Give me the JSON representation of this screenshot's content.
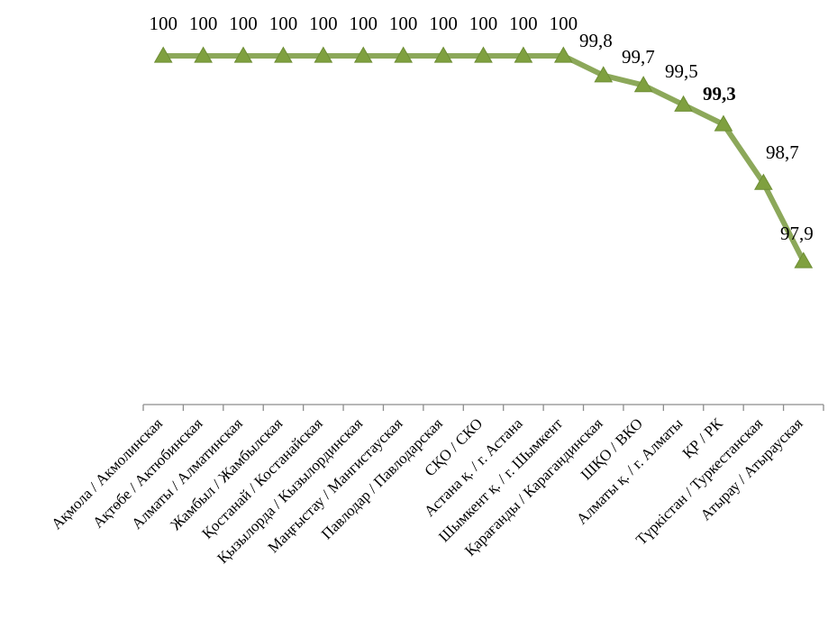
{
  "chart_data": {
    "type": "line",
    "categories": [
      "Ақмола / Акмолинская",
      "Ақтөбе / Актюбинская",
      "Алматы / Алматинская",
      "Жамбыл / Жамбылская",
      "Қостанай / Костанайская",
      "Қызылорда / Кызылординская",
      "Маңғыстау / Мангистауская",
      "Павлодар / Павлодарская",
      "СҚО / СКО",
      "Астана қ. / г. Астана",
      "Шымкент қ. / г. Шымкент",
      "Қарағанды / Карагандинская",
      "ШҚО / ВКО",
      "Алматы қ. / г. Алматы",
      "ҚР / РК",
      "Түркістан / Туркестанская",
      "Атырау / Атырауская"
    ],
    "values": [
      100,
      100,
      100,
      100,
      100,
      100,
      100,
      100,
      100,
      100,
      100,
      99.8,
      99.7,
      99.5,
      99.3,
      98.7,
      97.9
    ],
    "data_labels": [
      "100",
      "100",
      "100",
      "100",
      "100",
      "100",
      "100",
      "100",
      "100",
      "100",
      "100",
      "99,8",
      "99,7",
      "99,5",
      "99,3",
      "98,7",
      "97,9"
    ],
    "highlighted_index": 14,
    "ylim": [
      96,
      100.35
    ],
    "grid": false,
    "legend": "none",
    "colors": {
      "line": "#8CA85A",
      "marker_fill": "#7FA03F",
      "marker_stroke": "#6E8E35",
      "axis": "#8C8C8C"
    }
  }
}
